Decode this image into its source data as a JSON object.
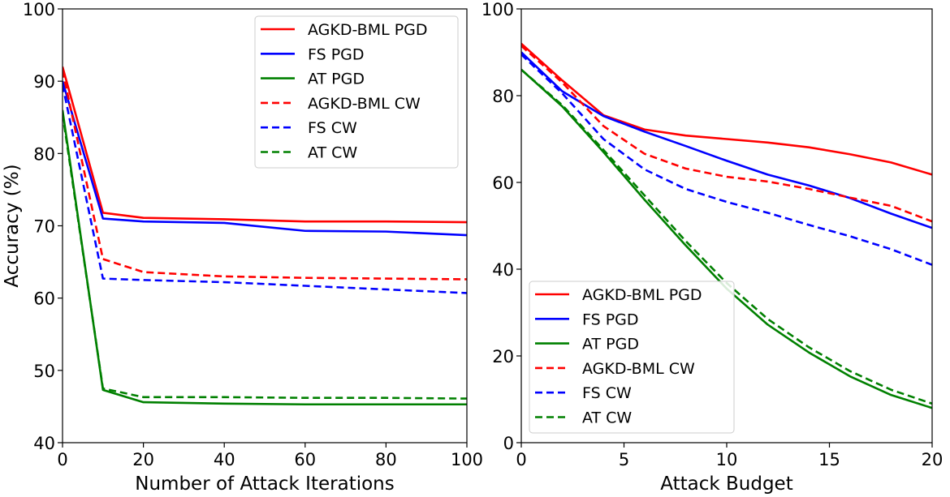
{
  "chart_data": [
    {
      "type": "line",
      "title": "",
      "xlabel": "Number of Attack Iterations",
      "ylabel": "Accuracy (%)",
      "xlim": [
        0,
        100
      ],
      "ylim": [
        40,
        100
      ],
      "xticks": [
        0,
        20,
        40,
        60,
        80,
        100
      ],
      "yticks": [
        40,
        50,
        60,
        70,
        80,
        90,
        100
      ],
      "legend_position": "top-right",
      "x": [
        0,
        10,
        20,
        40,
        60,
        80,
        100
      ],
      "series": [
        {
          "name": "AGKD-BML PGD",
          "color": "#ff0000",
          "dash": "solid",
          "values": [
            92.0,
            71.8,
            71.1,
            70.9,
            70.6,
            70.6,
            70.5
          ]
        },
        {
          "name": "FS PGD",
          "color": "#0000ff",
          "dash": "solid",
          "values": [
            90.0,
            71.0,
            70.6,
            70.4,
            69.3,
            69.2,
            68.7
          ]
        },
        {
          "name": "AT PGD",
          "color": "#008000",
          "dash": "solid",
          "values": [
            86.0,
            47.3,
            45.6,
            45.4,
            45.3,
            45.3,
            45.3
          ]
        },
        {
          "name": "AGKD-BML CW",
          "color": "#ff0000",
          "dash": "dashed",
          "values": [
            91.5,
            65.4,
            63.6,
            63.0,
            62.8,
            62.7,
            62.6
          ]
        },
        {
          "name": "FS CW",
          "color": "#0000ff",
          "dash": "dashed",
          "values": [
            89.5,
            62.7,
            62.5,
            62.2,
            61.7,
            61.2,
            60.7
          ]
        },
        {
          "name": "AT CW",
          "color": "#008000",
          "dash": "dashed",
          "values": [
            85.5,
            47.5,
            46.3,
            46.3,
            46.2,
            46.2,
            46.1
          ]
        }
      ]
    },
    {
      "type": "line",
      "title": "",
      "xlabel": "Attack Budget",
      "ylabel": "",
      "xlim": [
        0,
        20
      ],
      "ylim": [
        0,
        100
      ],
      "xticks": [
        0,
        5,
        10,
        15,
        20
      ],
      "yticks": [
        0,
        20,
        40,
        60,
        80,
        100
      ],
      "legend_position": "bottom-left",
      "x": [
        0,
        2,
        4,
        6,
        8,
        10,
        12,
        14,
        16,
        18,
        20
      ],
      "series": [
        {
          "name": "AGKD-BML PGD",
          "color": "#ff0000",
          "dash": "solid",
          "values": [
            92.0,
            83.5,
            75.5,
            72.2,
            70.8,
            70.0,
            69.2,
            68.1,
            66.5,
            64.6,
            61.8
          ]
        },
        {
          "name": "FS PGD",
          "color": "#0000ff",
          "dash": "solid",
          "values": [
            90.0,
            81.0,
            75.3,
            71.7,
            68.4,
            65.0,
            61.8,
            59.3,
            56.4,
            52.8,
            49.5
          ]
        },
        {
          "name": "AT PGD",
          "color": "#008000",
          "dash": "solid",
          "values": [
            86.0,
            77.5,
            67.0,
            56.0,
            45.5,
            35.5,
            27.2,
            20.8,
            15.3,
            11.0,
            8.0
          ]
        },
        {
          "name": "AGKD-BML CW",
          "color": "#ff0000",
          "dash": "dashed",
          "values": [
            91.5,
            83.0,
            73.0,
            66.6,
            63.2,
            61.3,
            60.2,
            58.5,
            56.5,
            54.6,
            51.0
          ]
        },
        {
          "name": "FS CW",
          "color": "#0000ff",
          "dash": "dashed",
          "values": [
            89.5,
            80.5,
            70.0,
            63.0,
            58.5,
            55.5,
            53.0,
            50.2,
            47.6,
            44.6,
            41.0
          ]
        },
        {
          "name": "AT CW",
          "color": "#008000",
          "dash": "dashed",
          "values": [
            86.0,
            77.8,
            67.5,
            57.0,
            46.5,
            36.8,
            28.5,
            22.0,
            16.5,
            12.2,
            9.0
          ]
        }
      ]
    }
  ]
}
